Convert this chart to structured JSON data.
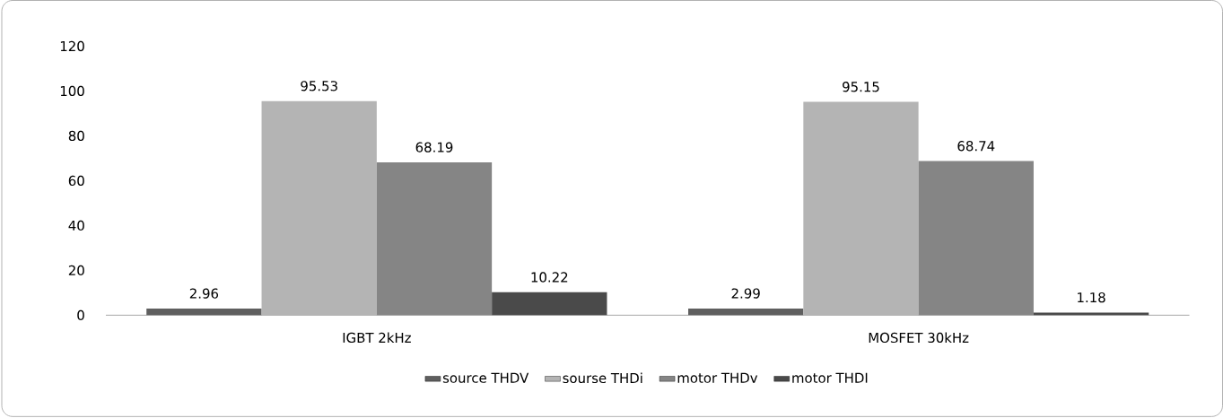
{
  "chart_data": {
    "type": "bar",
    "categories": [
      "IGBT 2kHz",
      "MOSFET 30kHz"
    ],
    "series": [
      {
        "name": "source THDV",
        "color": "#5f5f5f",
        "values": [
          2.96,
          2.99
        ]
      },
      {
        "name": "sourse THDi",
        "color": "#b4b4b4",
        "values": [
          95.53,
          95.15
        ]
      },
      {
        "name": "motor THDv",
        "color": "#858585",
        "values": [
          68.19,
          68.74
        ]
      },
      {
        "name": "motor THDI",
        "color": "#4a4a4a",
        "values": [
          10.22,
          1.18
        ]
      }
    ],
    "ylim": [
      0,
      120
    ],
    "yticks": [
      0,
      20,
      40,
      60,
      80,
      100,
      120
    ],
    "data_labels": true,
    "legend": "bottom"
  }
}
